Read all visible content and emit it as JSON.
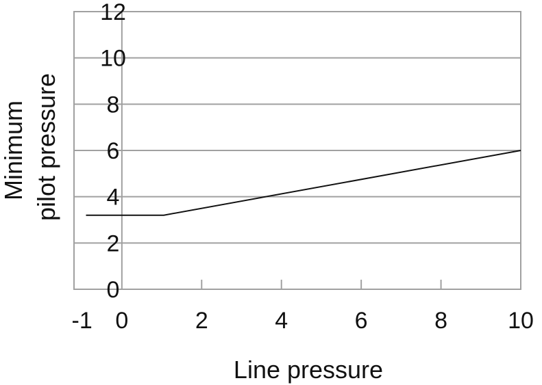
{
  "chart_data": {
    "type": "line",
    "title": "",
    "xlabel": "Line pressure",
    "ylabel_lines": [
      "Minimum",
      "pilot pressure"
    ],
    "xlim": [
      -1.2,
      10
    ],
    "ylim": [
      0,
      12
    ],
    "x_ticks": [
      -1,
      0,
      2,
      4,
      6,
      8,
      10
    ],
    "x_tick_labels": [
      "-1",
      "0",
      "2",
      "4",
      "6",
      "8",
      "10"
    ],
    "y_ticks": [
      0,
      2,
      4,
      6,
      8,
      10,
      12
    ],
    "y_tick_labels": [
      "0",
      "2",
      "4",
      "6",
      "8",
      "10",
      "12"
    ],
    "grid": {
      "horizontal": true,
      "vertical_at_zero": true
    },
    "legend": "none",
    "colors": {
      "line": "#111111",
      "grid": "#a0a0a0",
      "frame": "#a0a0a0",
      "text": "#111111"
    },
    "series": [
      {
        "x": [
          -0.9,
          1.05,
          10
        ],
        "y": [
          3.2,
          3.2,
          6.0
        ]
      }
    ]
  }
}
